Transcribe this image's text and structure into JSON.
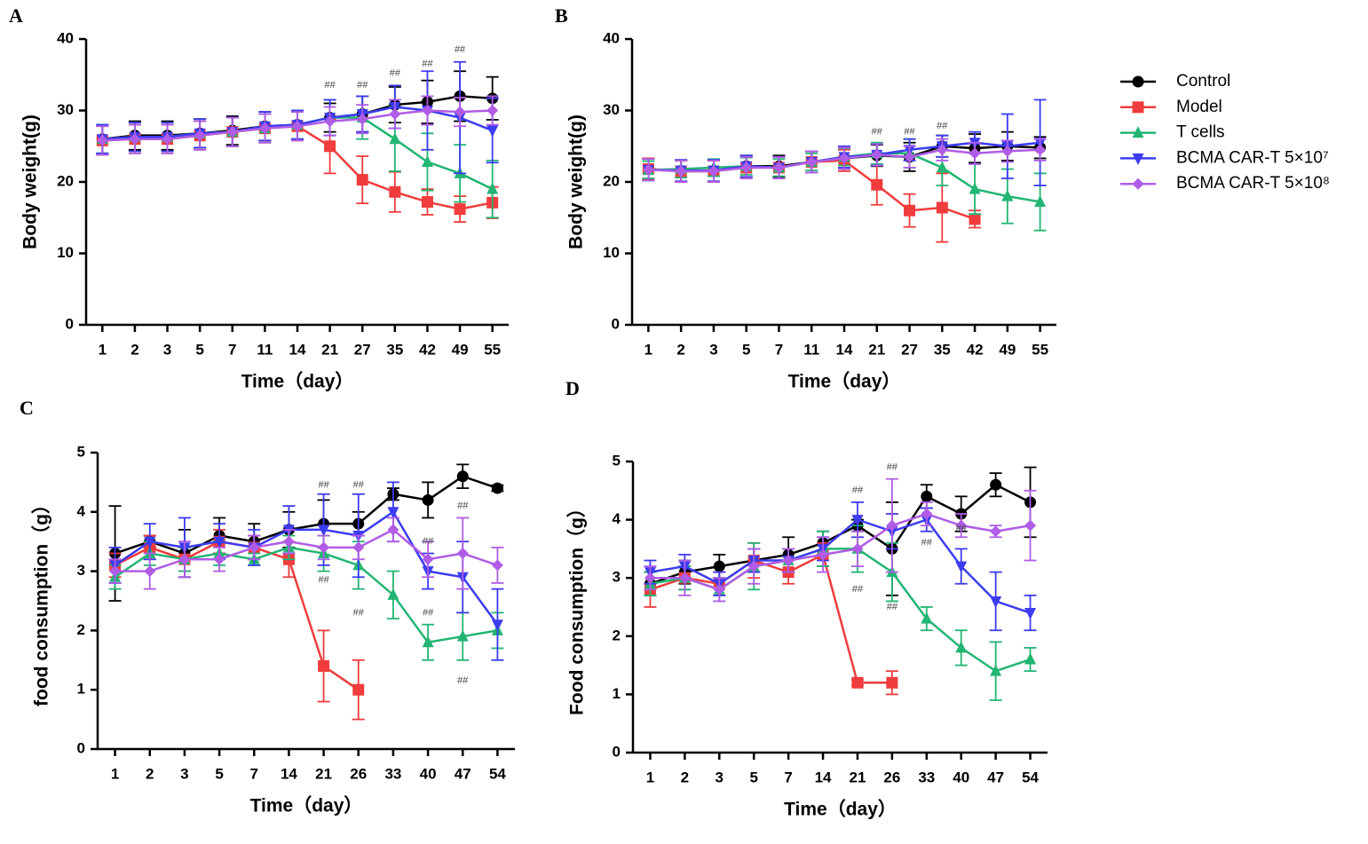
{
  "chart_data": [
    {
      "type": "line",
      "label": "A",
      "ylabel": "Body weight(g)",
      "xlabel": "Time（day）",
      "categories": [
        "1",
        "2",
        "3",
        "5",
        "7",
        "11",
        "14",
        "21",
        "27",
        "35",
        "42",
        "49",
        "55"
      ],
      "ylim": [
        0,
        40
      ],
      "yticks": [
        0,
        10,
        20,
        30,
        40
      ],
      "series": [
        {
          "name": "Control",
          "color": "#000000",
          "marker": "circle",
          "values": [
            26,
            26.5,
            26.5,
            26.8,
            27.2,
            27.8,
            28,
            29,
            29.5,
            30.8,
            31.2,
            32,
            31.7
          ],
          "errors": [
            2,
            2,
            2,
            2,
            2,
            2,
            2,
            2,
            2.5,
            2.5,
            3,
            3.5,
            3
          ]
        },
        {
          "name": "Model",
          "color": "#f03c3c",
          "marker": "square",
          "values": [
            25.8,
            26,
            26,
            26.5,
            27,
            27.5,
            27.8,
            25,
            20.3,
            18.6,
            17.2,
            16.2,
            17.1
          ],
          "errors": [
            2,
            2,
            2,
            2,
            2,
            2,
            2,
            3.8,
            3.3,
            2.8,
            1.8,
            1.8,
            2.2
          ]
        },
        {
          "name": "T cells",
          "color": "#22b573",
          "marker": "triangle",
          "values": [
            26,
            26.3,
            26.3,
            26.8,
            27,
            27.5,
            28,
            29,
            29,
            26,
            22.8,
            21.2,
            19
          ],
          "errors": [
            2,
            2,
            2,
            2,
            2,
            2,
            2,
            2.5,
            3,
            4.5,
            4,
            4,
            4
          ]
        },
        {
          "name": "BCMA CAR-T 5×10⁷",
          "color": "#3c3cf0",
          "marker": "triangle-down",
          "values": [
            26,
            26.3,
            26.3,
            26.8,
            27,
            27.8,
            28,
            29,
            29.5,
            30.5,
            30,
            29,
            27.2
          ],
          "errors": [
            2,
            2,
            2,
            2,
            2,
            2,
            2,
            2.5,
            2.5,
            3,
            5.5,
            7.8,
            4.5
          ]
        },
        {
          "name": "BCMA CAR-T 5×10⁸",
          "color": "#b05ce6",
          "marker": "diamond",
          "values": [
            25.8,
            26,
            26,
            26.5,
            27,
            27.5,
            27.8,
            28.5,
            28.8,
            29.5,
            30,
            29.8,
            30
          ],
          "errors": [
            2,
            2,
            2,
            2,
            2,
            2,
            2,
            2,
            2,
            2,
            2,
            2,
            2
          ]
        }
      ],
      "annotations": [
        {
          "text": "##",
          "x": "21",
          "y": 33.5
        },
        {
          "text": "##",
          "x": "27",
          "y": 33.5
        },
        {
          "text": "##",
          "x": "35",
          "y": 35.2
        },
        {
          "text": "##",
          "x": "42",
          "y": 36.5
        },
        {
          "text": "##",
          "x": "49",
          "y": 38.5
        }
      ]
    },
    {
      "type": "line",
      "label": "B",
      "ylabel": "Body weight(g)",
      "xlabel": "Time（day）",
      "categories": [
        "1",
        "2",
        "3",
        "5",
        "7",
        "11",
        "14",
        "21",
        "27",
        "35",
        "42",
        "49",
        "55"
      ],
      "ylim": [
        0,
        40
      ],
      "yticks": [
        0,
        10,
        20,
        30,
        40
      ],
      "series": [
        {
          "color": "#000000",
          "marker": "circle",
          "values": [
            21.8,
            21.5,
            21.5,
            22.2,
            22.2,
            22.8,
            23.3,
            23.7,
            23.5,
            25,
            24.7,
            25,
            24.8
          ],
          "errors": [
            1.5,
            1.5,
            1.5,
            1.5,
            1.5,
            1.5,
            1.5,
            1.5,
            2,
            1.5,
            2,
            2,
            1.5
          ]
        },
        {
          "color": "#f03c3c",
          "marker": "square",
          "values": [
            21.8,
            21.5,
            21.5,
            22,
            22,
            22.8,
            23,
            19.6,
            16,
            16.4,
            14.8,
            null,
            null
          ],
          "errors": [
            1.5,
            1.5,
            1.5,
            1.5,
            1.5,
            1.5,
            1.5,
            2.8,
            2.3,
            4.8,
            1.2,
            null,
            null
          ]
        },
        {
          "color": "#22b573",
          "marker": "triangle",
          "values": [
            21.7,
            21.8,
            22,
            22.2,
            22,
            22.8,
            23.5,
            24,
            24,
            22,
            19,
            18,
            17.2
          ],
          "errors": [
            1.2,
            1.2,
            1.2,
            1.2,
            1.2,
            1.2,
            1.2,
            1.5,
            2,
            2.5,
            3.5,
            3.8,
            4
          ]
        },
        {
          "color": "#3c3cf0",
          "marker": "triangle-down",
          "values": [
            21.7,
            21.6,
            21.6,
            22.2,
            22,
            22.8,
            23.5,
            23.8,
            24.5,
            25,
            25.5,
            25,
            25.5
          ],
          "errors": [
            1.5,
            1.5,
            1.5,
            1.5,
            1.5,
            1.5,
            1.5,
            1.5,
            1.5,
            1.5,
            1.5,
            4.5,
            6
          ]
        },
        {
          "color": "#b05ce6",
          "marker": "diamond",
          "values": [
            21.7,
            21.5,
            21.5,
            22,
            22,
            22.8,
            23.3,
            23.8,
            23.5,
            24.5,
            24,
            24.3,
            24.5
          ],
          "errors": [
            1.5,
            1.5,
            1.5,
            1.5,
            1.5,
            1.5,
            1.5,
            1.5,
            1.5,
            1.5,
            1.5,
            1.5,
            1.5
          ]
        }
      ],
      "annotations": [
        {
          "text": "##",
          "x": "21",
          "y": 27
        },
        {
          "text": "##",
          "x": "27",
          "y": 27
        },
        {
          "text": "##",
          "x": "35",
          "y": 27.8
        }
      ]
    },
    {
      "type": "line",
      "label": "C",
      "ylabel": "food consumption（g）",
      "xlabel": "Time（day）",
      "categories": [
        "1",
        "2",
        "3",
        "5",
        "7",
        "14",
        "21",
        "26",
        "33",
        "40",
        "47",
        "54"
      ],
      "ylim": [
        0,
        5
      ],
      "yticks": [
        0,
        1,
        2,
        3,
        4,
        5
      ],
      "series": [
        {
          "color": "#000000",
          "marker": "circle",
          "values": [
            3.3,
            3.5,
            3.3,
            3.6,
            3.5,
            3.7,
            3.8,
            3.8,
            4.3,
            4.2,
            4.6,
            4.4
          ],
          "errors": [
            0.8,
            0.1,
            0.4,
            0.3,
            0.3,
            0.3,
            0.4,
            0.2,
            0.1,
            0.3,
            0.2,
            0.05
          ]
        },
        {
          "color": "#f03c3c",
          "marker": "square",
          "values": [
            3.1,
            3.4,
            3.2,
            3.5,
            3.4,
            3.2,
            1.4,
            1.0,
            null,
            null,
            null,
            null
          ],
          "errors": [
            0.2,
            0.2,
            0.2,
            0.2,
            0.2,
            0.3,
            0.6,
            0.5,
            null,
            null,
            null,
            null
          ]
        },
        {
          "color": "#22b573",
          "marker": "triangle",
          "values": [
            2.9,
            3.3,
            3.2,
            3.3,
            3.2,
            3.4,
            3.3,
            3.1,
            2.6,
            1.8,
            1.9,
            2.0
          ],
          "errors": [
            0.2,
            0.2,
            0.2,
            0.2,
            0.1,
            0.2,
            0.3,
            0.4,
            0.4,
            0.3,
            0.4,
            0.3
          ]
        },
        {
          "color": "#3c3cf0",
          "marker": "triangle-down",
          "values": [
            3.1,
            3.5,
            3.4,
            3.5,
            3.4,
            3.7,
            3.7,
            3.6,
            4.0,
            3.0,
            2.9,
            2.1
          ],
          "errors": [
            0.3,
            0.3,
            0.5,
            0.3,
            0.3,
            0.4,
            0.6,
            0.7,
            0.5,
            0.3,
            0.6,
            0.6
          ]
        },
        {
          "color": "#b05ce6",
          "marker": "diamond",
          "values": [
            3.0,
            3.0,
            3.2,
            3.2,
            3.4,
            3.5,
            3.4,
            3.4,
            3.7,
            3.2,
            3.3,
            3.1
          ],
          "errors": [
            0.2,
            0.3,
            0.3,
            0.2,
            0.2,
            0.2,
            0.2,
            0.2,
            0.2,
            0.3,
            0.6,
            0.3
          ]
        }
      ],
      "annotations": [
        {
          "text": "##",
          "x": "21",
          "y": 4.45
        },
        {
          "text": "##",
          "x": "26",
          "y": 4.45
        },
        {
          "text": "##",
          "x": "21",
          "y": 2.85
        },
        {
          "text": "##",
          "x": "26",
          "y": 2.3
        },
        {
          "text": "##",
          "x": "47",
          "y": 4.1
        },
        {
          "text": "##",
          "x": "40",
          "y": 3.5
        },
        {
          "text": "##",
          "x": "40",
          "y": 2.3
        },
        {
          "text": "##",
          "x": "47",
          "y": 1.15
        }
      ]
    },
    {
      "type": "line",
      "label": "D",
      "ylabel": "Food consumption（g）",
      "xlabel": "Time（day）",
      "categories": [
        "1",
        "2",
        "3",
        "5",
        "7",
        "14",
        "21",
        "26",
        "33",
        "40",
        "47",
        "54"
      ],
      "ylim": [
        0,
        5
      ],
      "yticks": [
        0,
        1,
        2,
        3,
        4,
        5
      ],
      "series": [
        {
          "color": "#000000",
          "marker": "circle",
          "values": [
            2.9,
            3.1,
            3.2,
            3.3,
            3.4,
            3.6,
            3.9,
            3.5,
            4.4,
            4.1,
            4.6,
            4.3
          ],
          "errors": [
            0.2,
            0.2,
            0.2,
            0.2,
            0.3,
            0.2,
            0.1,
            0.8,
            0.2,
            0.3,
            0.2,
            0.6
          ]
        },
        {
          "color": "#f03c3c",
          "marker": "square",
          "values": [
            2.8,
            3.0,
            2.9,
            3.3,
            3.1,
            3.4,
            1.2,
            1.2,
            null,
            null,
            null,
            null
          ],
          "errors": [
            0.3,
            0.2,
            0.2,
            0.3,
            0.2,
            0.2,
            0.05,
            0.2,
            null,
            null,
            null,
            null
          ]
        },
        {
          "color": "#22b573",
          "marker": "triangle",
          "values": [
            2.9,
            3.0,
            2.8,
            3.2,
            3.3,
            3.5,
            3.5,
            3.1,
            2.3,
            1.8,
            1.4,
            1.6
          ],
          "errors": [
            0.2,
            0.2,
            0.2,
            0.4,
            0.2,
            0.3,
            0.4,
            0.5,
            0.2,
            0.3,
            0.5,
            0.2
          ]
        },
        {
          "color": "#3c3cf0",
          "marker": "triangle-down",
          "values": [
            3.1,
            3.2,
            2.9,
            3.3,
            3.3,
            3.5,
            4.0,
            3.8,
            4.0,
            3.2,
            2.6,
            2.4
          ],
          "errors": [
            0.2,
            0.2,
            0.2,
            0.2,
            0.2,
            0.2,
            0.3,
            0.3,
            0.2,
            0.3,
            0.5,
            0.3
          ]
        },
        {
          "color": "#b05ce6",
          "marker": "diamond",
          "values": [
            3.0,
            3.0,
            2.8,
            3.2,
            3.3,
            3.4,
            3.5,
            3.9,
            4.1,
            3.9,
            3.8,
            3.9
          ],
          "errors": [
            0.2,
            0.3,
            0.2,
            0.3,
            0.2,
            0.3,
            0.3,
            0.8,
            0.2,
            0.2,
            0.1,
            0.6
          ]
        }
      ],
      "annotations": [
        {
          "text": "##",
          "x": "21",
          "y": 4.5
        },
        {
          "text": "##",
          "x": "26",
          "y": 4.9
        },
        {
          "text": "##",
          "x": "33",
          "y": 3.6
        },
        {
          "text": "##",
          "x": "40",
          "y": 3.85
        },
        {
          "text": "##",
          "x": "21",
          "y": 2.8
        },
        {
          "text": "##",
          "x": "26",
          "y": 2.5
        }
      ]
    }
  ]
}
